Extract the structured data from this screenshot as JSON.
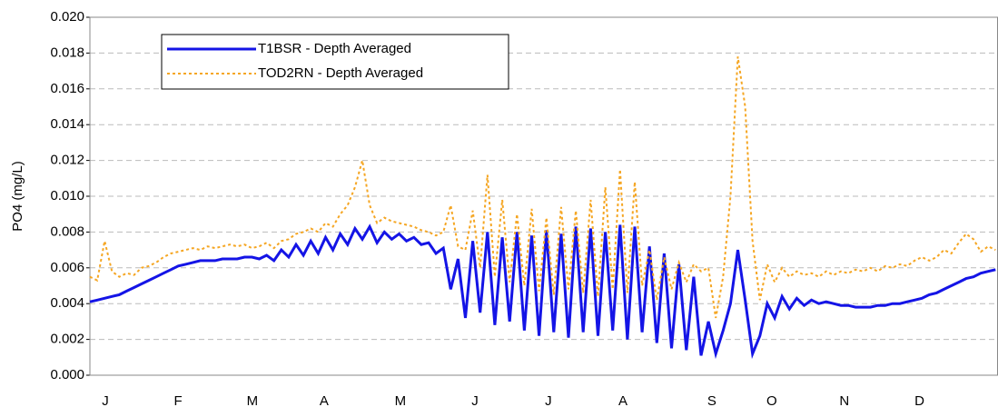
{
  "chart_data": {
    "type": "line",
    "ylabel": "PO4 (mg/L)",
    "x": [
      0,
      3,
      6,
      9,
      12,
      15,
      18,
      21,
      24,
      27,
      30,
      33,
      36,
      39,
      42,
      45,
      48,
      51,
      54,
      57,
      60,
      63,
      66,
      69,
      72,
      75,
      78,
      81,
      84,
      87,
      90,
      93,
      96,
      99,
      102,
      105,
      108,
      111,
      114,
      117,
      120,
      123,
      126,
      129,
      132,
      135,
      138,
      141,
      144,
      147,
      150,
      153,
      156,
      159,
      162,
      165,
      168,
      171,
      174,
      177,
      180,
      183,
      186,
      189,
      192,
      195,
      198,
      201,
      204,
      207,
      210,
      213,
      216,
      219,
      222,
      225,
      228,
      231,
      234,
      237,
      240,
      243,
      246,
      249,
      252,
      255,
      258,
      261,
      264,
      267,
      270,
      273,
      276,
      279,
      282,
      285,
      288,
      291,
      294,
      297,
      300,
      303,
      306,
      309,
      312,
      315,
      318,
      321,
      324,
      327,
      330,
      333,
      336,
      339,
      342,
      345,
      348,
      351,
      354,
      357,
      360,
      363,
      366,
      369
    ],
    "series": [
      {
        "name": "T1BSR - Depth Averaged",
        "color": "#1414e6",
        "style": "solid",
        "values": [
          0.0041,
          0.0042,
          0.0043,
          0.0044,
          0.0045,
          0.0047,
          0.0049,
          0.0051,
          0.0053,
          0.0055,
          0.0057,
          0.0059,
          0.0061,
          0.0062,
          0.0063,
          0.0064,
          0.0064,
          0.0064,
          0.0065,
          0.0065,
          0.0065,
          0.0066,
          0.0066,
          0.0065,
          0.0067,
          0.0064,
          0.007,
          0.0066,
          0.0073,
          0.0067,
          0.0075,
          0.0068,
          0.0077,
          0.007,
          0.0079,
          0.0073,
          0.0082,
          0.0076,
          0.0083,
          0.0074,
          0.008,
          0.0076,
          0.0079,
          0.0075,
          0.0077,
          0.0073,
          0.0074,
          0.0068,
          0.0071,
          0.0048,
          0.0065,
          0.0032,
          0.0075,
          0.0035,
          0.008,
          0.0028,
          0.0077,
          0.003,
          0.008,
          0.0025,
          0.0078,
          0.0022,
          0.0081,
          0.0024,
          0.0079,
          0.0021,
          0.0083,
          0.0024,
          0.0082,
          0.0022,
          0.008,
          0.0025,
          0.0084,
          0.002,
          0.0083,
          0.0024,
          0.0072,
          0.0018,
          0.0068,
          0.0015,
          0.0062,
          0.0014,
          0.0055,
          0.0011,
          0.003,
          0.0012,
          0.0025,
          0.004,
          0.007,
          0.0042,
          0.0012,
          0.0022,
          0.004,
          0.0032,
          0.0044,
          0.0037,
          0.0043,
          0.0039,
          0.0042,
          0.004,
          0.0041,
          0.004,
          0.0039,
          0.0039,
          0.0038,
          0.0038,
          0.0038,
          0.0039,
          0.0039,
          0.004,
          0.004,
          0.0041,
          0.0042,
          0.0043,
          0.0045,
          0.0046,
          0.0048,
          0.005,
          0.0052,
          0.0054,
          0.0055,
          0.0057,
          0.0058,
          0.0059
        ]
      },
      {
        "name": "TOD2RN - Depth Averaged",
        "color": "#f5a623",
        "style": "dotted",
        "values": [
          0.0055,
          0.0053,
          0.0075,
          0.0058,
          0.0055,
          0.0057,
          0.0056,
          0.006,
          0.0061,
          0.0063,
          0.0066,
          0.0068,
          0.0069,
          0.007,
          0.0071,
          0.007,
          0.0072,
          0.0071,
          0.0072,
          0.0073,
          0.0072,
          0.0073,
          0.0071,
          0.0072,
          0.0074,
          0.0071,
          0.0075,
          0.0076,
          0.0079,
          0.008,
          0.0082,
          0.008,
          0.0085,
          0.0083,
          0.009,
          0.0095,
          0.0105,
          0.012,
          0.0095,
          0.0085,
          0.0088,
          0.0086,
          0.0085,
          0.0084,
          0.0083,
          0.0081,
          0.008,
          0.0078,
          0.008,
          0.0095,
          0.0072,
          0.007,
          0.0092,
          0.006,
          0.0112,
          0.0055,
          0.0098,
          0.0052,
          0.009,
          0.005,
          0.0093,
          0.0047,
          0.0088,
          0.0045,
          0.0094,
          0.0048,
          0.0092,
          0.0046,
          0.0098,
          0.0044,
          0.0105,
          0.0048,
          0.0115,
          0.0046,
          0.0108,
          0.005,
          0.007,
          0.0042,
          0.0066,
          0.0048,
          0.0063,
          0.0052,
          0.0062,
          0.0058,
          0.006,
          0.0032,
          0.0055,
          0.01,
          0.0178,
          0.015,
          0.0075,
          0.0042,
          0.0062,
          0.0052,
          0.006,
          0.0055,
          0.0058,
          0.0056,
          0.0057,
          0.0055,
          0.0058,
          0.0056,
          0.0058,
          0.0057,
          0.0059,
          0.0058,
          0.006,
          0.0058,
          0.0061,
          0.006,
          0.0062,
          0.0061,
          0.0064,
          0.0066,
          0.0064,
          0.0066,
          0.007,
          0.0068,
          0.0074,
          0.0079,
          0.0076,
          0.0069,
          0.0072,
          0.007
        ]
      }
    ],
    "xlim": [
      0,
      370
    ],
    "xticks": [
      {
        "value": 6.3,
        "label": "J"
      },
      {
        "value": 35.9,
        "label": "F"
      },
      {
        "value": 66.2,
        "label": "M"
      },
      {
        "value": 95.4,
        "label": "A"
      },
      {
        "value": 126.5,
        "label": "M"
      },
      {
        "value": 156.9,
        "label": "J"
      },
      {
        "value": 186.8,
        "label": "J"
      },
      {
        "value": 217.2,
        "label": "A"
      },
      {
        "value": 253.4,
        "label": "S"
      },
      {
        "value": 277.8,
        "label": "O"
      },
      {
        "value": 307.4,
        "label": "N"
      },
      {
        "value": 338,
        "label": "D"
      }
    ],
    "ylim": [
      0,
      0.02
    ],
    "yticks": [
      {
        "value": 0,
        "label": "0.000"
      },
      {
        "value": 0.002,
        "label": "0.002"
      },
      {
        "value": 0.004,
        "label": "0.004"
      },
      {
        "value": 0.006,
        "label": "0.006"
      },
      {
        "value": 0.008,
        "label": "0.008"
      },
      {
        "value": 0.01,
        "label": "0.010"
      },
      {
        "value": 0.012,
        "label": "0.012"
      },
      {
        "value": 0.014,
        "label": "0.014"
      },
      {
        "value": 0.016,
        "label": "0.016"
      },
      {
        "value": 0.018,
        "label": "0.018"
      },
      {
        "value": 0.02,
        "label": "0.020"
      }
    ],
    "grid": true,
    "legend": "upper left"
  }
}
